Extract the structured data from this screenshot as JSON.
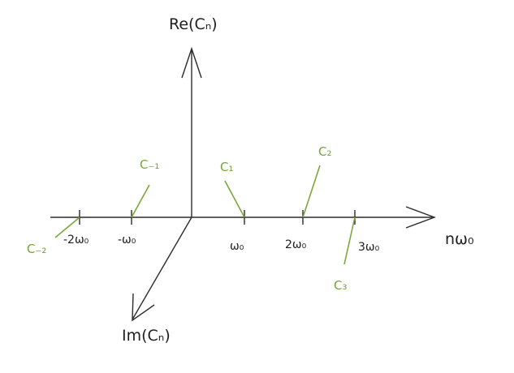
{
  "axes": {
    "vertical_label": "Re(Cₙ)",
    "horizontal_label": "nω₀",
    "diagonal_label": "Im(Cₙ)"
  },
  "ticks": [
    {
      "label": "-2ω₀"
    },
    {
      "label": "-ω₀"
    },
    {
      "label": "ω₀"
    },
    {
      "label": "2ω₀"
    },
    {
      "label": "3ω₀"
    }
  ],
  "coefficients": [
    {
      "label": "C₋₂"
    },
    {
      "label": "C₋₁"
    },
    {
      "label": "C₁"
    },
    {
      "label": "C₂"
    },
    {
      "label": "C₃"
    }
  ],
  "colors": {
    "axis": "#2b2b2b",
    "coefficient": "#7aa83c"
  }
}
